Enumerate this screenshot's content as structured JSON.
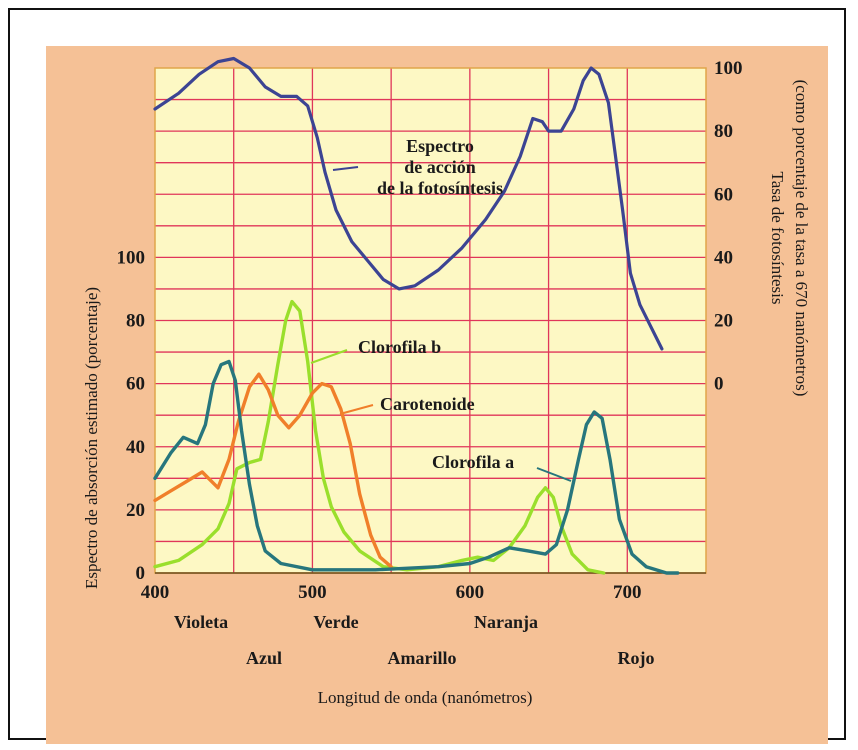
{
  "chart_data": {
    "type": "line",
    "xlabel": "Longitud de onda (nanómetros)",
    "ylabel_left": "Espectro de absorción estimado (porcentaje)",
    "ylabel_right": [
      "Tasa de fotosíntesis",
      "(como porcentaje de la tasa a 670 nanómetros)"
    ],
    "x_ticks": [
      "400",
      "500",
      "600",
      "700"
    ],
    "x_range": [
      400,
      750
    ],
    "left_ticks": [
      "0",
      "20",
      "40",
      "60",
      "80",
      "100"
    ],
    "left_range": [
      0,
      160
    ],
    "right_ticks": [
      "0",
      "20",
      "40",
      "60",
      "80",
      "100"
    ],
    "right_range": [
      -60,
      100
    ],
    "colors": [
      "Violeta",
      "Azul",
      "Verde",
      "Amarillo",
      "Naranja",
      "Rojo"
    ],
    "grid": true,
    "plot_background": "#fdf8c4",
    "gridline_color": "#e0365a",
    "series": [
      {
        "name": "Espectro de acción de la fotosíntesis",
        "label": [
          "Espectro",
          "de acción",
          "de la fotosíntesis"
        ],
        "axis": "right",
        "color": "#3c4493",
        "points": [
          [
            400,
            87
          ],
          [
            415,
            92
          ],
          [
            428,
            98
          ],
          [
            440,
            102
          ],
          [
            450,
            103
          ],
          [
            460,
            100
          ],
          [
            470,
            94
          ],
          [
            480,
            91
          ],
          [
            490,
            91
          ],
          [
            497,
            88
          ],
          [
            503,
            78
          ],
          [
            508,
            67
          ],
          [
            515,
            55
          ],
          [
            525,
            45
          ],
          [
            535,
            39
          ],
          [
            545,
            33
          ],
          [
            555,
            30
          ],
          [
            565,
            31
          ],
          [
            580,
            36
          ],
          [
            595,
            43
          ],
          [
            610,
            52
          ],
          [
            622,
            61
          ],
          [
            632,
            72
          ],
          [
            640,
            84
          ],
          [
            646,
            83
          ],
          [
            650,
            80
          ],
          [
            658,
            80
          ],
          [
            666,
            87
          ],
          [
            672,
            96
          ],
          [
            677,
            100
          ],
          [
            682,
            98
          ],
          [
            688,
            89
          ],
          [
            692,
            74
          ],
          [
            697,
            55
          ],
          [
            702,
            35
          ],
          [
            708,
            25
          ],
          [
            715,
            18
          ],
          [
            722,
            11
          ]
        ]
      },
      {
        "name": "Clorofila b",
        "label": [
          "Clorofila b"
        ],
        "axis": "left",
        "color": "#9adf2c",
        "points": [
          [
            400,
            2
          ],
          [
            415,
            4
          ],
          [
            430,
            9
          ],
          [
            440,
            14
          ],
          [
            447,
            22
          ],
          [
            452,
            33
          ],
          [
            460,
            35
          ],
          [
            467,
            36
          ],
          [
            472,
            48
          ],
          [
            478,
            66
          ],
          [
            483,
            80
          ],
          [
            487,
            86
          ],
          [
            492,
            83
          ],
          [
            497,
            67
          ],
          [
            502,
            45
          ],
          [
            507,
            30
          ],
          [
            512,
            21
          ],
          [
            520,
            13
          ],
          [
            530,
            7
          ],
          [
            545,
            2
          ],
          [
            560,
            1
          ],
          [
            580,
            2
          ],
          [
            595,
            4
          ],
          [
            605,
            5
          ],
          [
            615,
            4
          ],
          [
            625,
            8
          ],
          [
            635,
            15
          ],
          [
            643,
            24
          ],
          [
            648,
            27
          ],
          [
            653,
            24
          ],
          [
            658,
            15
          ],
          [
            665,
            6
          ],
          [
            675,
            1
          ],
          [
            685,
            0
          ]
        ]
      },
      {
        "name": "Carotenoide",
        "label": [
          "Carotenoide"
        ],
        "axis": "left",
        "color": "#f07f2a",
        "points": [
          [
            400,
            23
          ],
          [
            410,
            26
          ],
          [
            420,
            29
          ],
          [
            430,
            32
          ],
          [
            440,
            27
          ],
          [
            447,
            36
          ],
          [
            453,
            48
          ],
          [
            460,
            59
          ],
          [
            466,
            63
          ],
          [
            472,
            58
          ],
          [
            478,
            50
          ],
          [
            485,
            46
          ],
          [
            492,
            50
          ],
          [
            500,
            57
          ],
          [
            506,
            60
          ],
          [
            512,
            59
          ],
          [
            518,
            52
          ],
          [
            524,
            41
          ],
          [
            530,
            25
          ],
          [
            537,
            12
          ],
          [
            543,
            5
          ],
          [
            550,
            2
          ]
        ]
      },
      {
        "name": "Clorofila a",
        "label": [
          "Clorofila a"
        ],
        "axis": "left",
        "color": "#27767d",
        "points": [
          [
            400,
            30
          ],
          [
            410,
            38
          ],
          [
            418,
            43
          ],
          [
            427,
            41
          ],
          [
            432,
            47
          ],
          [
            437,
            60
          ],
          [
            442,
            66
          ],
          [
            447,
            67
          ],
          [
            451,
            61
          ],
          [
            455,
            45
          ],
          [
            460,
            28
          ],
          [
            465,
            15
          ],
          [
            470,
            7
          ],
          [
            480,
            3
          ],
          [
            500,
            1
          ],
          [
            540,
            1
          ],
          [
            580,
            2
          ],
          [
            600,
            3
          ],
          [
            612,
            5
          ],
          [
            625,
            8
          ],
          [
            637,
            7
          ],
          [
            648,
            6
          ],
          [
            655,
            9
          ],
          [
            662,
            20
          ],
          [
            669,
            36
          ],
          [
            674,
            47
          ],
          [
            679,
            51
          ],
          [
            684,
            49
          ],
          [
            689,
            36
          ],
          [
            695,
            17
          ],
          [
            703,
            6
          ],
          [
            712,
            2
          ],
          [
            725,
            0
          ],
          [
            732,
            0
          ]
        ]
      }
    ]
  }
}
